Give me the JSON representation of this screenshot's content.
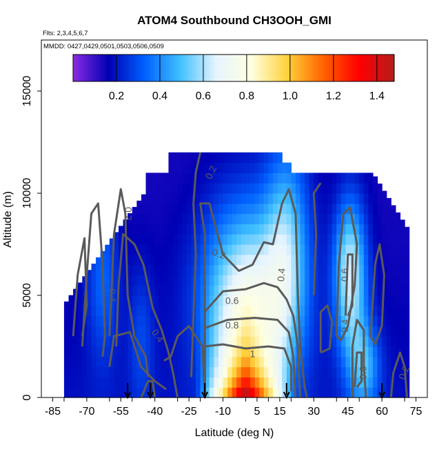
{
  "chart_data": {
    "type": "heatmap",
    "title": "ATOM4 Southbound CH3OOH_GMI",
    "annotations": [
      "Flts: 2,3,4,5,6,7",
      "MMDD: 0427,0429,0501,0503,0506,0509"
    ],
    "xlabel": "Latitude (deg N)",
    "ylabel": "Altitude (m)",
    "xlim": [
      -90,
      80
    ],
    "ylim": [
      0,
      17500
    ],
    "x_ticks": [
      -85,
      -70,
      -55,
      -40,
      -25,
      -10,
      5,
      15,
      30,
      45,
      60,
      75
    ],
    "y_ticks": [
      0,
      5000,
      10000,
      15000
    ],
    "colorbar": {
      "range": [
        0.0,
        1.48
      ],
      "ticks": [
        "0.2",
        "0.4",
        "0.6",
        "0.8",
        "1.0",
        "1.2",
        "1.4"
      ],
      "stops": [
        "#8a2be2",
        "#0000b4",
        "#0060ff",
        "#40c0ff",
        "#e6f4ff",
        "#ffffe0",
        "#ffd23c",
        "#ff6400",
        "#ff0000",
        "#b41c1c"
      ]
    },
    "contour_levels": [
      "0.2",
      "0.4",
      "0.6",
      "0.8",
      "1"
    ],
    "flight_markers_lat": [
      -52,
      -42,
      -18,
      18,
      60
    ],
    "description_of_field": "Low values (~0.1-0.2) at high latitudes and upper altitudes; maximum (~1.2-1.4) near the surface between about -18 and 18 deg N; moderate values (~0.5-0.7) in columns near 45 deg N up to 8000 m."
  }
}
